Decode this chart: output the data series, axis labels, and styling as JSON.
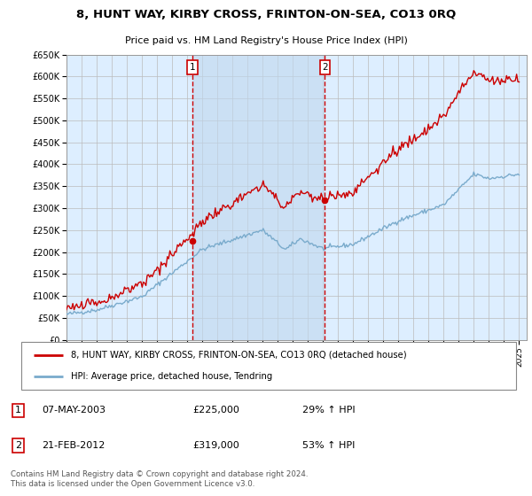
{
  "title": "8, HUNT WAY, KIRBY CROSS, FRINTON-ON-SEA, CO13 0RQ",
  "subtitle": "Price paid vs. HM Land Registry's House Price Index (HPI)",
  "legend_line1": "8, HUNT WAY, KIRBY CROSS, FRINTON-ON-SEA, CO13 0RQ (detached house)",
  "legend_line2": "HPI: Average price, detached house, Tendring",
  "sale1_date": "07-MAY-2003",
  "sale1_price": 225000,
  "sale1_pct": "29%",
  "sale2_date": "21-FEB-2012",
  "sale2_price": 319000,
  "sale2_pct": "53%",
  "footer": "Contains HM Land Registry data © Crown copyright and database right 2024.\nThis data is licensed under the Open Government Licence v3.0.",
  "red_color": "#cc0000",
  "blue_color": "#7aabcc",
  "bg_color": "#ddeeff",
  "highlight_color": "#c8ddf0",
  "grid_color": "#bbbbbb",
  "ylim": [
    0,
    650000
  ],
  "yticks": [
    0,
    50000,
    100000,
    150000,
    200000,
    250000,
    300000,
    350000,
    400000,
    450000,
    500000,
    550000,
    600000,
    650000
  ],
  "sale1_year": 2003.35,
  "sale2_year": 2012.13,
  "xmin": 1995,
  "xmax": 2025.5
}
